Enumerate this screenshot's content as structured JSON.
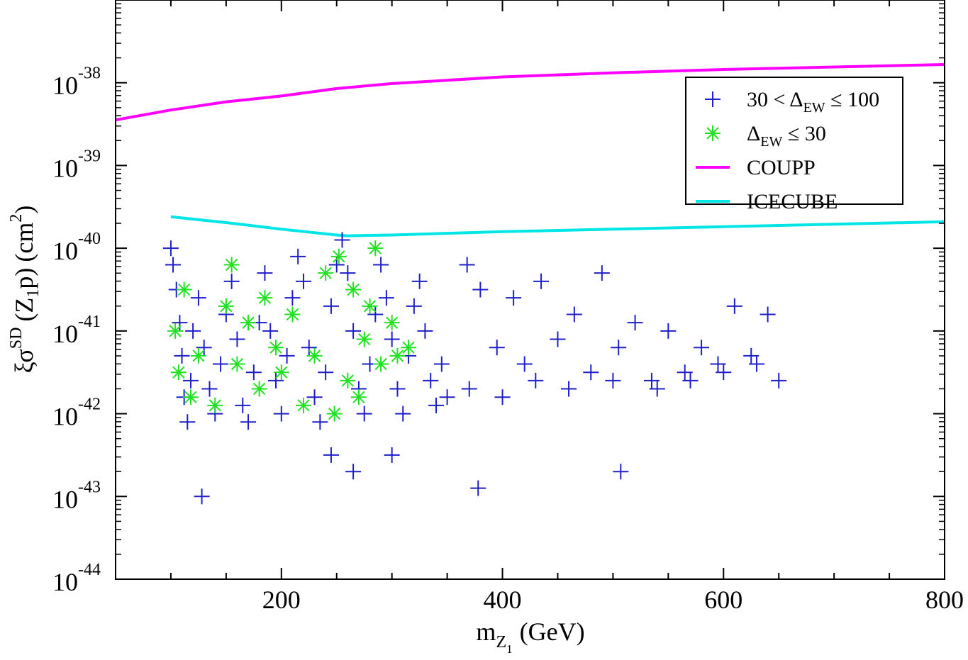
{
  "chart_data": {
    "type": "scatter",
    "title": "",
    "xlabel": {
      "base": "m",
      "sub_base": "Z",
      "sub_sub": "1",
      "unit": "(GeV)"
    },
    "ylabel": {
      "prefix": "ξσ",
      "sup": "SD",
      "arg_open": "(",
      "arg_z": "Z",
      "arg_sub": "1",
      "arg_p": "p)",
      "unit_open": "(cm",
      "unit_sup": "2",
      "unit_close": ")"
    },
    "x_range": [
      50,
      800
    ],
    "x_ticks": [
      200,
      400,
      600,
      800
    ],
    "x_tick_labels": [
      "200",
      "400",
      "600",
      "800"
    ],
    "y_log_range": [
      -44,
      -37
    ],
    "y_ticks": [
      -44,
      -43,
      -42,
      -41,
      -40,
      -39,
      -38
    ],
    "y_tick_labels": [
      {
        "base": "10",
        "exp": "-44"
      },
      {
        "base": "10",
        "exp": "-43"
      },
      {
        "base": "10",
        "exp": "-42"
      },
      {
        "base": "10",
        "exp": "-41"
      },
      {
        "base": "10",
        "exp": "-40"
      },
      {
        "base": "10",
        "exp": "-39"
      },
      {
        "base": "10",
        "exp": "-38"
      }
    ],
    "legend_position": "top-right",
    "series": [
      {
        "name": "30 < ΔEW ≤ 100",
        "label_parts": {
          "pre": "30 < Δ",
          "sub": "EW",
          "post": " ≤ 100"
        },
        "marker": "plus",
        "color": "#1f1fc8",
        "sample_points_log10": [
          [
            100,
            -40.0
          ],
          [
            102,
            -40.2
          ],
          [
            105,
            -40.5
          ],
          [
            108,
            -40.9
          ],
          [
            110,
            -41.3
          ],
          [
            112,
            -41.8
          ],
          [
            115,
            -42.1
          ],
          [
            118,
            -41.6
          ],
          [
            120,
            -41.0
          ],
          [
            125,
            -40.6
          ],
          [
            130,
            -41.2
          ],
          [
            135,
            -41.7
          ],
          [
            140,
            -42.0
          ],
          [
            145,
            -41.4
          ],
          [
            150,
            -40.8
          ],
          [
            155,
            -40.4
          ],
          [
            160,
            -41.1
          ],
          [
            165,
            -41.9
          ],
          [
            170,
            -42.1
          ],
          [
            175,
            -41.5
          ],
          [
            180,
            -40.9
          ],
          [
            185,
            -40.3
          ],
          [
            190,
            -41.0
          ],
          [
            195,
            -41.6
          ],
          [
            200,
            -42.0
          ],
          [
            205,
            -41.3
          ],
          [
            210,
            -40.6
          ],
          [
            215,
            -40.1
          ],
          [
            220,
            -40.4
          ],
          [
            225,
            -41.2
          ],
          [
            230,
            -41.8
          ],
          [
            235,
            -42.1
          ],
          [
            240,
            -41.5
          ],
          [
            245,
            -40.7
          ],
          [
            250,
            -40.2
          ],
          [
            255,
            -39.9
          ],
          [
            260,
            -40.3
          ],
          [
            265,
            -41.0
          ],
          [
            270,
            -41.7
          ],
          [
            275,
            -42.0
          ],
          [
            280,
            -41.4
          ],
          [
            285,
            -40.8
          ],
          [
            290,
            -40.2
          ],
          [
            295,
            -40.6
          ],
          [
            300,
            -41.1
          ],
          [
            305,
            -41.7
          ],
          [
            310,
            -42.0
          ],
          [
            315,
            -41.3
          ],
          [
            320,
            -40.7
          ],
          [
            325,
            -40.4
          ],
          [
            330,
            -41.0
          ],
          [
            335,
            -41.6
          ],
          [
            340,
            -41.9
          ],
          [
            345,
            -41.4
          ],
          [
            350,
            -41.8
          ],
          [
            368,
            -40.2
          ],
          [
            380,
            -40.5
          ],
          [
            395,
            -41.2
          ],
          [
            410,
            -40.6
          ],
          [
            420,
            -41.4
          ],
          [
            435,
            -40.4
          ],
          [
            450,
            -41.1
          ],
          [
            465,
            -40.8
          ],
          [
            480,
            -41.5
          ],
          [
            490,
            -40.3
          ],
          [
            505,
            -41.2
          ],
          [
            520,
            -40.9
          ],
          [
            535,
            -41.6
          ],
          [
            550,
            -41.0
          ],
          [
            565,
            -41.5
          ],
          [
            580,
            -41.2
          ],
          [
            595,
            -41.4
          ],
          [
            610,
            -40.7
          ],
          [
            625,
            -41.3
          ],
          [
            640,
            -40.8
          ],
          [
            650,
            -41.6
          ],
          [
            370,
            -41.7
          ],
          [
            400,
            -41.8
          ],
          [
            430,
            -41.6
          ],
          [
            460,
            -41.7
          ],
          [
            500,
            -41.6
          ],
          [
            540,
            -41.7
          ],
          [
            570,
            -41.6
          ],
          [
            600,
            -41.5
          ],
          [
            630,
            -41.4
          ],
          [
            128,
            -43.0
          ],
          [
            245,
            -42.5
          ],
          [
            265,
            -42.7
          ],
          [
            300,
            -42.5
          ],
          [
            378,
            -42.9
          ],
          [
            507,
            -42.7
          ]
        ]
      },
      {
        "name": "ΔEW ≤ 30",
        "label_parts": {
          "pre": "Δ",
          "sub": "EW",
          "post": " ≤ 30"
        },
        "marker": "asterisk",
        "color": "#22e022",
        "sample_points_log10": [
          [
            104,
            -41.0
          ],
          [
            107,
            -41.5
          ],
          [
            112,
            -40.5
          ],
          [
            118,
            -41.8
          ],
          [
            125,
            -41.3
          ],
          [
            140,
            -41.9
          ],
          [
            150,
            -40.7
          ],
          [
            155,
            -40.2
          ],
          [
            160,
            -41.4
          ],
          [
            170,
            -40.9
          ],
          [
            180,
            -41.7
          ],
          [
            185,
            -40.6
          ],
          [
            195,
            -41.2
          ],
          [
            200,
            -41.5
          ],
          [
            210,
            -40.8
          ],
          [
            220,
            -41.9
          ],
          [
            230,
            -41.3
          ],
          [
            240,
            -40.3
          ],
          [
            248,
            -42.0
          ],
          [
            252,
            -40.1
          ],
          [
            260,
            -41.6
          ],
          [
            265,
            -40.5
          ],
          [
            270,
            -41.8
          ],
          [
            275,
            -41.1
          ],
          [
            280,
            -40.7
          ],
          [
            285,
            -40.0
          ],
          [
            290,
            -41.4
          ],
          [
            300,
            -40.9
          ],
          [
            305,
            -41.3
          ],
          [
            315,
            -41.2
          ]
        ]
      },
      {
        "name": "COUPP",
        "label_parts": {
          "pre": "COUPP",
          "sub": "",
          "post": ""
        },
        "marker": "line",
        "color": "#ff00ff",
        "x": [
          50,
          100,
          150,
          200,
          250,
          300,
          350,
          400,
          500,
          600,
          700,
          800
        ],
        "y_log10": [
          -38.45,
          -38.33,
          -38.23,
          -38.16,
          -38.07,
          -38.01,
          -37.97,
          -37.93,
          -37.88,
          -37.84,
          -37.81,
          -37.78
        ]
      },
      {
        "name": "ICECUBE",
        "label_parts": {
          "pre": "ICECUBE",
          "sub": "",
          "post": ""
        },
        "marker": "line",
        "color": "#00e5e5",
        "x": [
          100,
          150,
          200,
          250,
          260,
          300,
          350,
          400,
          500,
          600,
          700,
          800
        ],
        "y_log10": [
          -39.62,
          -39.69,
          -39.77,
          -39.84,
          -39.85,
          -39.84,
          -39.82,
          -39.8,
          -39.77,
          -39.74,
          -39.71,
          -39.68
        ]
      }
    ]
  }
}
